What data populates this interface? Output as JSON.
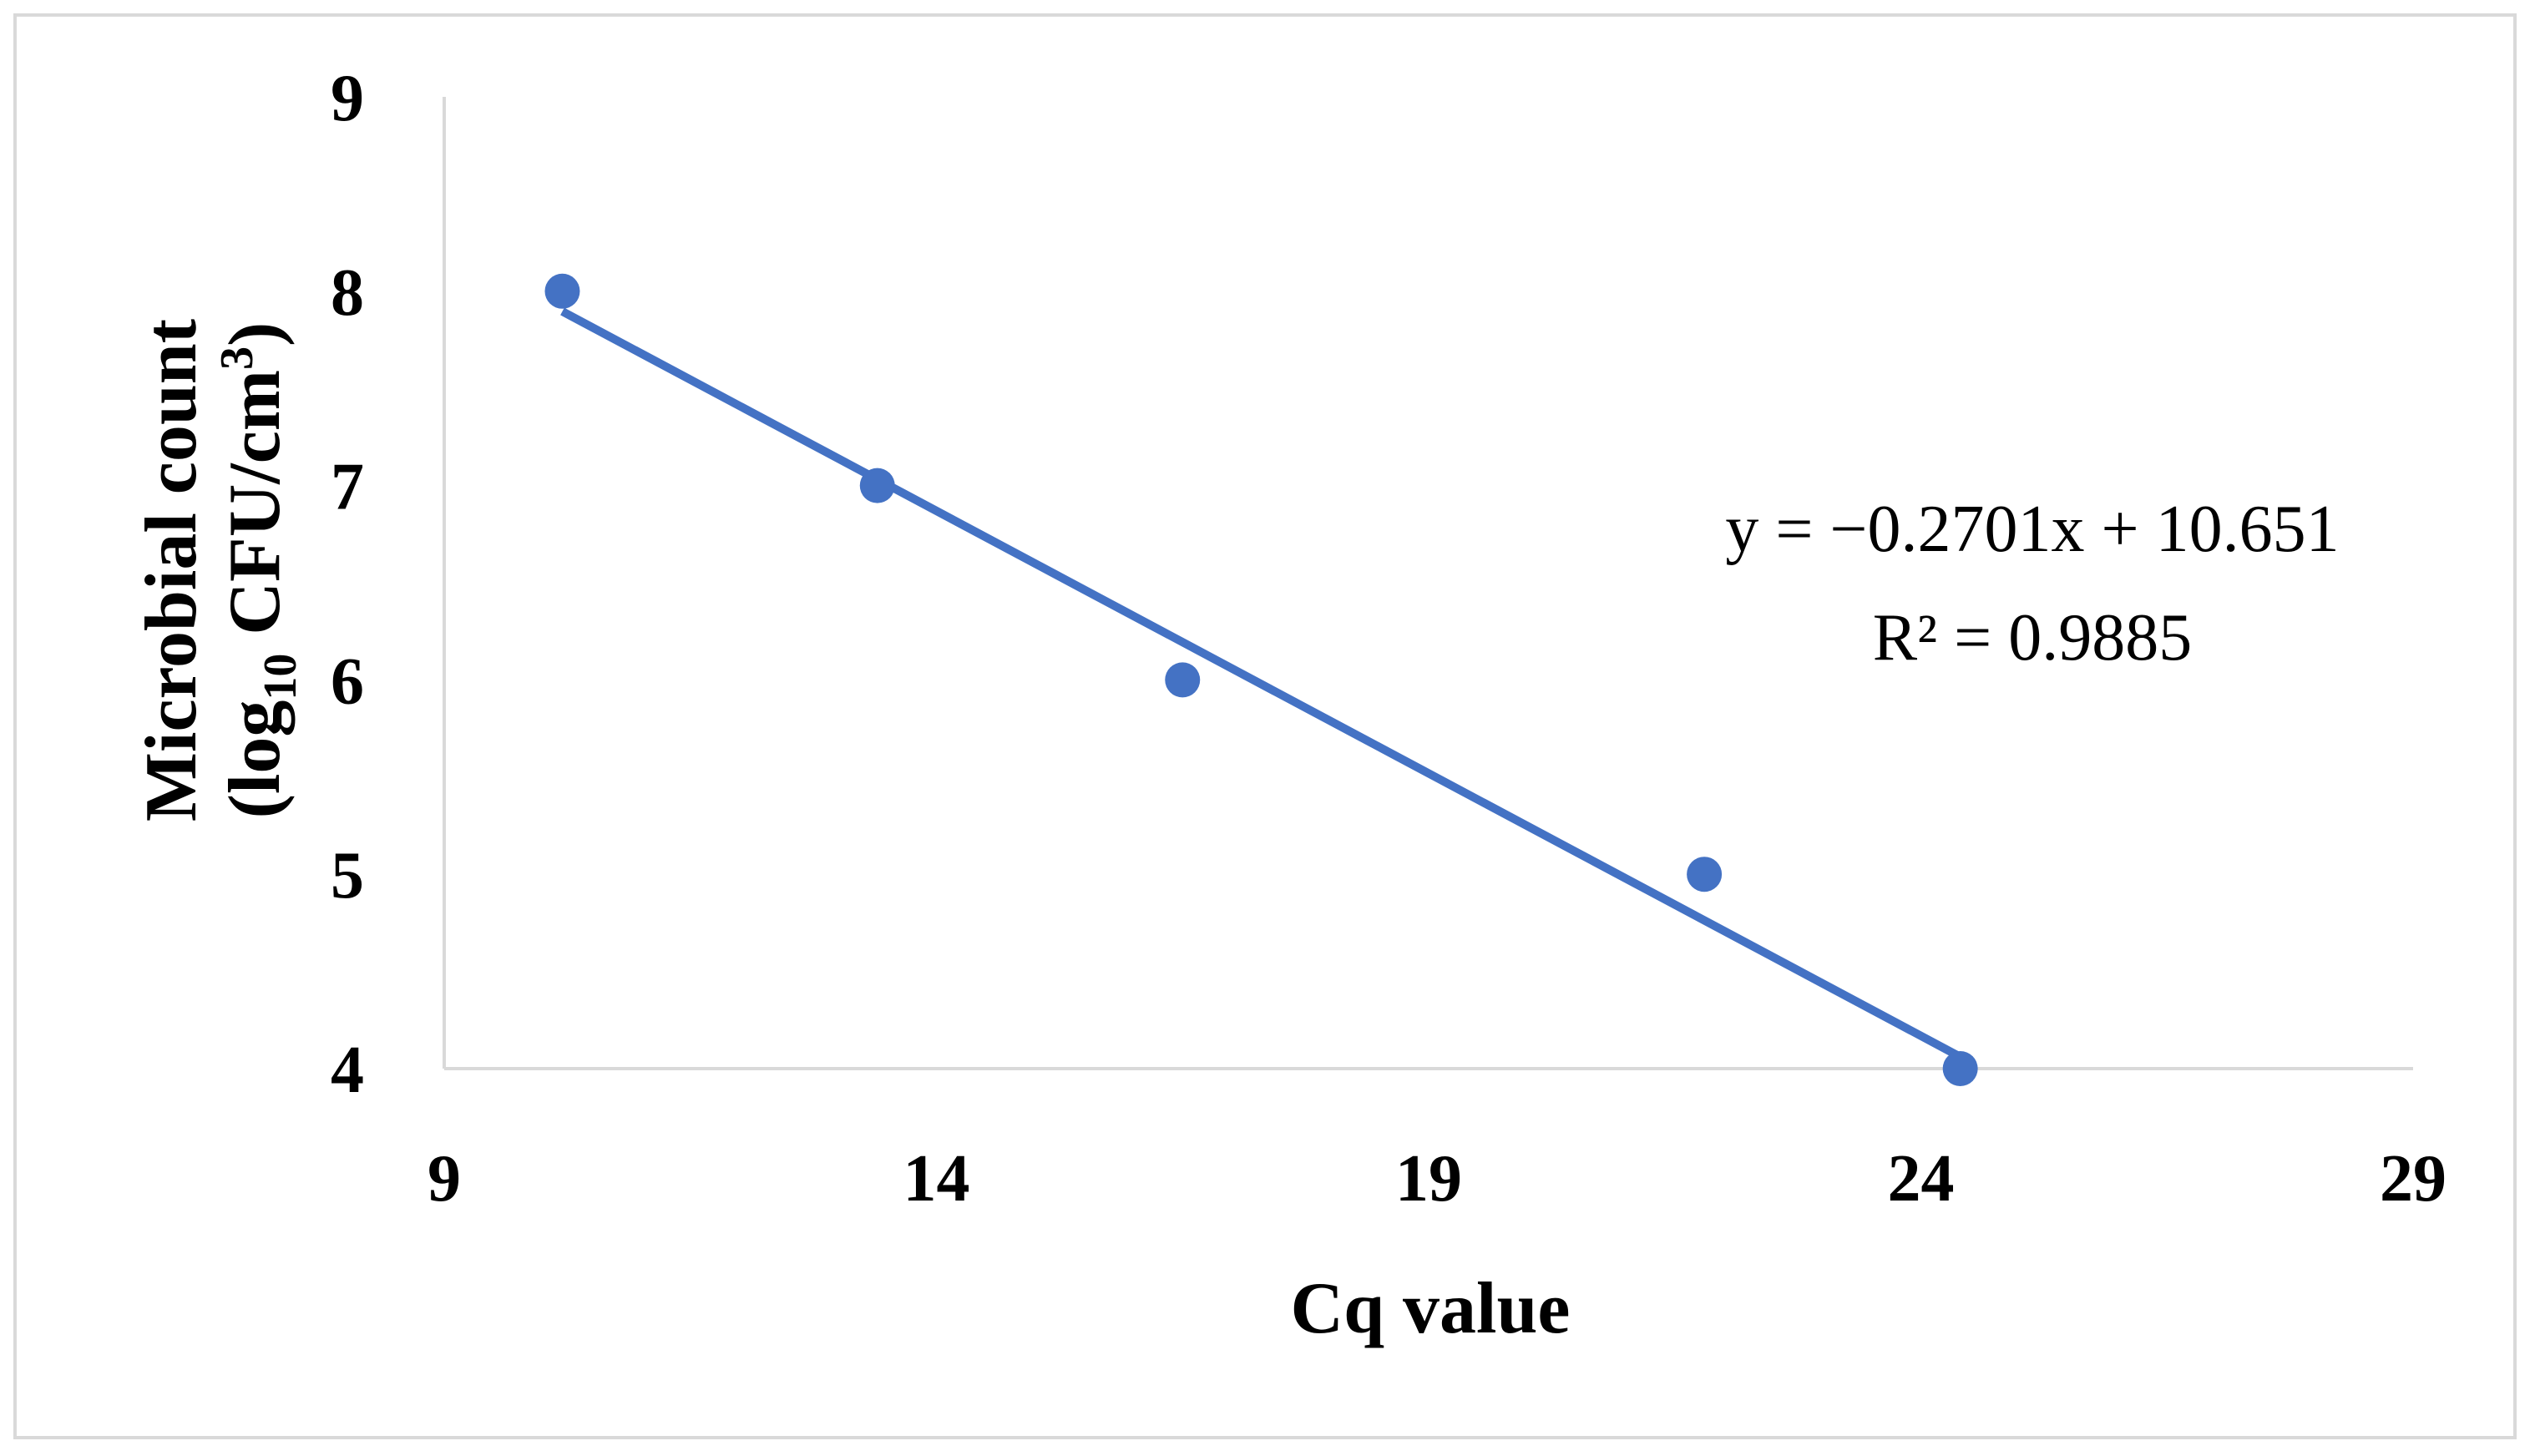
{
  "chart_data": {
    "type": "scatter",
    "xlabel": "Cq value",
    "ylabel_line1": "Microbial count",
    "ylabel_line2_prefix": "(log",
    "ylabel_line2_subscript": "10",
    "ylabel_line2_middle": " CFU/cm",
    "ylabel_line2_superscript": "3",
    "ylabel_line2_suffix": ")",
    "xlim": [
      9,
      29
    ],
    "ylim": [
      4,
      9
    ],
    "x_ticks": [
      9,
      14,
      19,
      24,
      29
    ],
    "y_ticks": [
      4,
      5,
      6,
      7,
      8,
      9
    ],
    "x_tick_labels": [
      "9",
      "14",
      "19",
      "24",
      "29"
    ],
    "y_tick_labels": [
      "4",
      "5",
      "6",
      "7",
      "8",
      "9"
    ],
    "grid": false,
    "series": [
      {
        "points": [
          {
            "x": 10.2,
            "y": 8
          },
          {
            "x": 13.4,
            "y": 7
          },
          {
            "x": 16.5,
            "y": 6
          },
          {
            "x": 21.8,
            "y": 5
          },
          {
            "x": 24.4,
            "y": 4
          }
        ]
      }
    ],
    "trendline": {
      "slope": -0.2701,
      "intercept": 10.651,
      "x_range": [
        10.2,
        24.4
      ],
      "equation": "y = −0.2701x + 10.651",
      "r_squared": "R² = 0.9885"
    },
    "colors": {
      "marker": "#4472C4",
      "trendline": "#4472C4",
      "axis": "#d9d9d9",
      "border": "#d9d9d9"
    }
  }
}
